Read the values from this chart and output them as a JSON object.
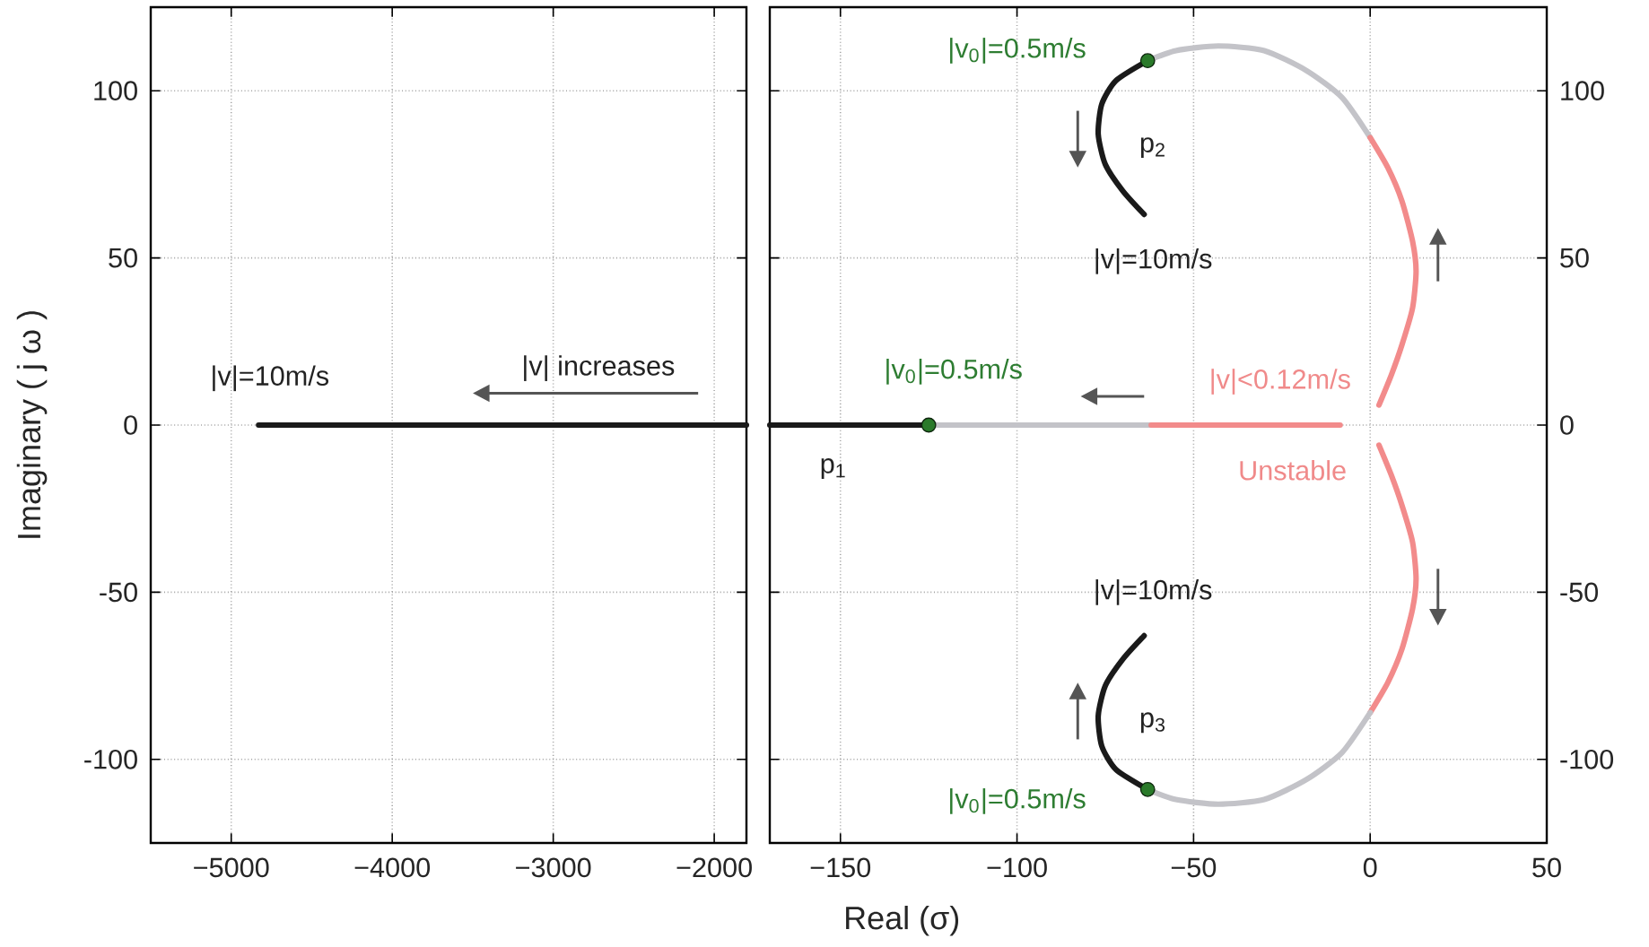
{
  "chart_data": [
    {
      "type": "line",
      "ylabel": "Imaginary ( j ω )",
      "xlim": [
        -5500,
        -1800
      ],
      "ylim": [
        -125,
        125
      ],
      "xticks": [
        {
          "value": -5000,
          "label": "−5000"
        },
        {
          "value": -4000,
          "label": "−4000"
        },
        {
          "value": -3000,
          "label": "−3000"
        },
        {
          "value": -2000,
          "label": "−2000"
        }
      ],
      "yticks": [
        -100,
        -50,
        0,
        50,
        100
      ],
      "grid": true,
      "series": [
        {
          "color": "#1a1a1a",
          "x": [
            -4830,
            -1800
          ],
          "values": [
            0,
            0
          ]
        }
      ],
      "annotations": [
        "|v|=10m/s",
        "|v| increases"
      ]
    },
    {
      "type": "line",
      "xlabel": "Real (σ)",
      "xlim": [
        -170,
        50
      ],
      "ylim": [
        -125,
        125
      ],
      "xticks": [
        {
          "value": -150,
          "label": "−150"
        },
        {
          "value": -100,
          "label": "−100"
        },
        {
          "value": -50,
          "label": "−50"
        },
        0,
        50
      ],
      "yticks": [
        -100,
        -50,
        0,
        50,
        100
      ],
      "grid": true,
      "series": [
        {
          "color": "#1a1a1a",
          "x": [
            -170,
            -125
          ],
          "values": [
            0,
            0
          ]
        },
        {
          "color": "#c3c3c8",
          "x": [
            -125,
            -62
          ],
          "values": [
            0,
            0
          ]
        },
        {
          "color": "#f28b8b",
          "x": [
            -62,
            -8.5
          ],
          "values": [
            0,
            0
          ]
        },
        {
          "color": "#1a1a1a",
          "x": [
            -64,
            -70,
            -75,
            -77,
            -76,
            -72,
            -63
          ],
          "values": [
            63,
            70,
            78,
            87,
            96,
            103,
            109
          ]
        },
        {
          "color": "#c3c3c8",
          "x": [
            -63,
            -55,
            -43,
            -30,
            -18,
            -8,
            0
          ],
          "values": [
            109,
            112,
            113.4,
            112,
            106,
            98,
            86
          ]
        },
        {
          "color": "#f28b8b",
          "x": [
            0,
            5,
            9,
            12,
            13,
            12,
            9,
            6,
            2.5
          ],
          "values": [
            86,
            77,
            67,
            55,
            46,
            35,
            24,
            15,
            6
          ]
        },
        {
          "color": "#f28b8b",
          "x": [
            0,
            5,
            9,
            12,
            13,
            12,
            9,
            6,
            2.5
          ],
          "values": [
            -86,
            -77,
            -67,
            -55,
            -46,
            -35,
            -24,
            -15,
            -6
          ]
        },
        {
          "color": "#c3c3c8",
          "x": [
            -63,
            -55,
            -43,
            -30,
            -18,
            -8,
            0
          ],
          "values": [
            -109,
            -112,
            -113.4,
            -112,
            -106,
            -98,
            -86
          ]
        },
        {
          "color": "#1a1a1a",
          "x": [
            -64,
            -70,
            -75,
            -77,
            -76,
            -72,
            -63
          ],
          "values": [
            -63,
            -70,
            -78,
            -87,
            -96,
            -103,
            -109
          ]
        },
        {
          "type": "scatter",
          "marker": "circle",
          "color": "#2a7a2a",
          "x": [
            -125,
            -63,
            -63
          ],
          "values": [
            0,
            109,
            -109
          ]
        }
      ],
      "annotations": [
        "|v$_{0}$|=0.5m/s",
        "p$_{2}$",
        "|v|=10m/s",
        "|v$_{0}$|=0.5m/s",
        "|v|<0.12m/s",
        "Unstable",
        "p$_{1}$",
        "|v|=10m/s",
        "p$_{3}$",
        "|v$_{0}$|=0.5m/s"
      ]
    }
  ]
}
